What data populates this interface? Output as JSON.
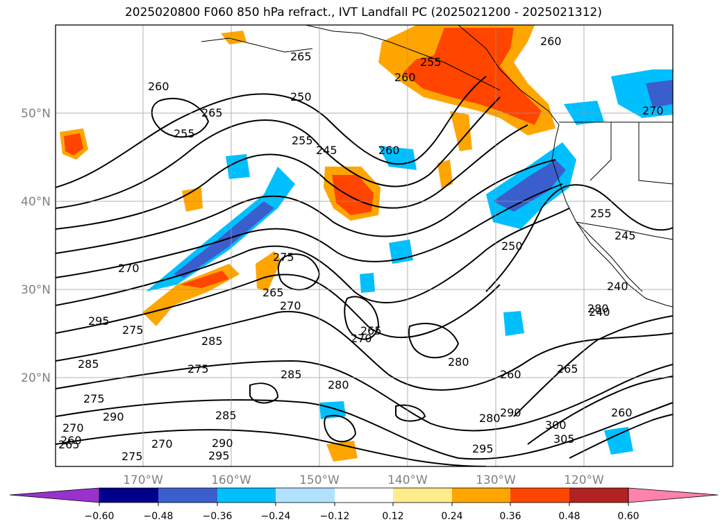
{
  "title": "2025020800 F060 850 hPa refract., IVT Landfall PC (2025021200 - 2025021312)",
  "latitude_labels": [
    "50°N",
    "40°N",
    "30°N",
    "20°N"
  ],
  "longitude_labels": [
    "170°W",
    "160°W",
    "150°W",
    "140°W",
    "130°W",
    "120°W"
  ],
  "colorbar": {
    "ticks": [
      "−0.60",
      "−0.48",
      "−0.36",
      "−0.24",
      "−0.12",
      "0.12",
      "0.24",
      "0.36",
      "0.48",
      "0.60"
    ],
    "colors": [
      "#9932cc",
      "#00008b",
      "#3a5fcd",
      "#00bfff",
      "#b0e2ff",
      "#ffffff",
      "#ffec8b",
      "#ffa500",
      "#ff4500",
      "#b22222",
      "#ff82ab"
    ]
  },
  "contour_labels": [
    "265",
    "255",
    "260",
    "250",
    "255",
    "245",
    "260",
    "260",
    "255",
    "265",
    "250",
    "255",
    "245",
    "260",
    "270",
    "270",
    "280",
    "275",
    "265",
    "270",
    "265",
    "270",
    "295",
    "275",
    "285",
    "285",
    "275",
    "285",
    "280",
    "280",
    "260",
    "265",
    "290",
    "270",
    "265",
    "275",
    "290",
    "295",
    "285",
    "275",
    "295",
    "290",
    "300",
    "305",
    "280",
    "260",
    "240",
    "240",
    "270",
    "260"
  ]
}
